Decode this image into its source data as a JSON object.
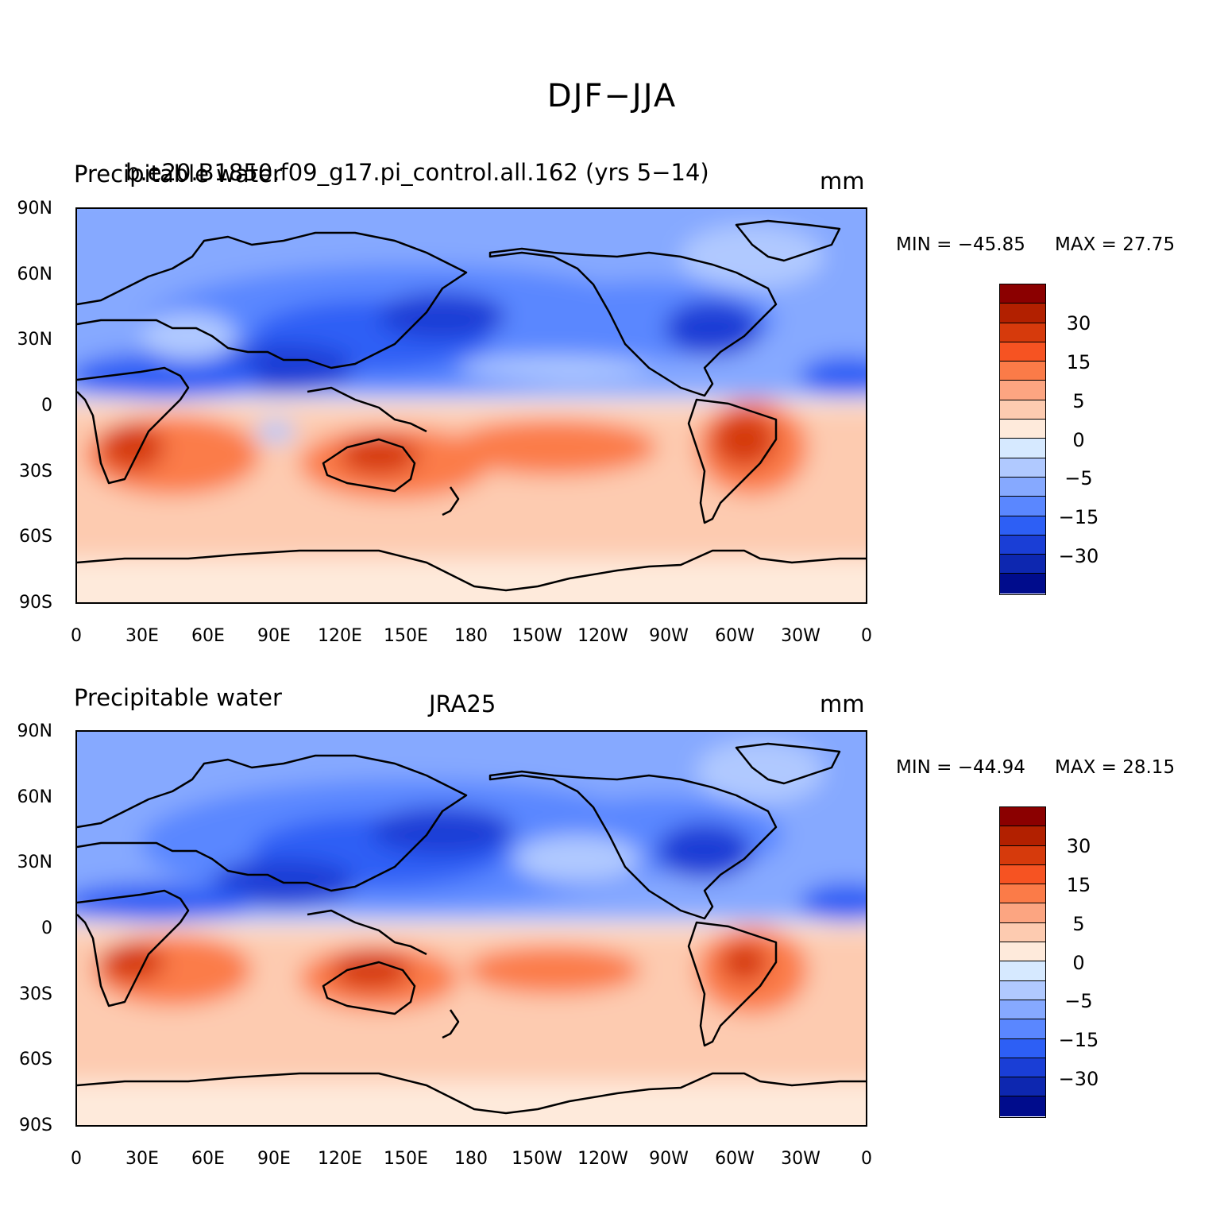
{
  "figure": {
    "title": "DJF−JJA"
  },
  "panels": [
    {
      "id": "model",
      "left_title": "Precipitable water",
      "center_title": "b.e20.B1850.f09_g17.pi_control.all.162 (yrs 5−14)",
      "units": "mm",
      "min_label": "MIN = −45.85",
      "max_label": "MAX =   27.75"
    },
    {
      "id": "obs",
      "left_title": "Precipitable water",
      "center_title": "JRA25",
      "units": "mm",
      "min_label": "MIN = −44.94",
      "max_label": "MAX =   28.15"
    }
  ],
  "axes": {
    "lat_labels": [
      "90N",
      "60N",
      "30N",
      "0",
      "30S",
      "60S",
      "90S"
    ],
    "lon_labels": [
      "0",
      "30E",
      "60E",
      "90E",
      "120E",
      "150E",
      "180",
      "150W",
      "120W",
      "90W",
      "60W",
      "30W",
      "0"
    ]
  },
  "colorbar": {
    "colors": [
      "#8b0000",
      "#b22000",
      "#d63a0c",
      "#f65322",
      "#fb7b48",
      "#fca581",
      "#fdcbb0",
      "#feeadb",
      "#d6e9ff",
      "#b0c9ff",
      "#86a9ff",
      "#5a87ff",
      "#2d5ff5",
      "#1a3ed6",
      "#0d27b0",
      "#000c8c"
    ],
    "labels": [
      "30",
      "15",
      "5",
      "0",
      "−5",
      "−15",
      "−30"
    ]
  },
  "colors": {
    "strong_blue": "#1a3ed6",
    "mid_blue": "#5a87ff",
    "light_blue": "#86a9ff",
    "pale_blue": "#b0c9ff",
    "pale_orange": "#feeadb",
    "light_orange": "#fdcbb0",
    "mid_orange": "#fb7b48",
    "strong_red": "#d63a0c"
  }
}
